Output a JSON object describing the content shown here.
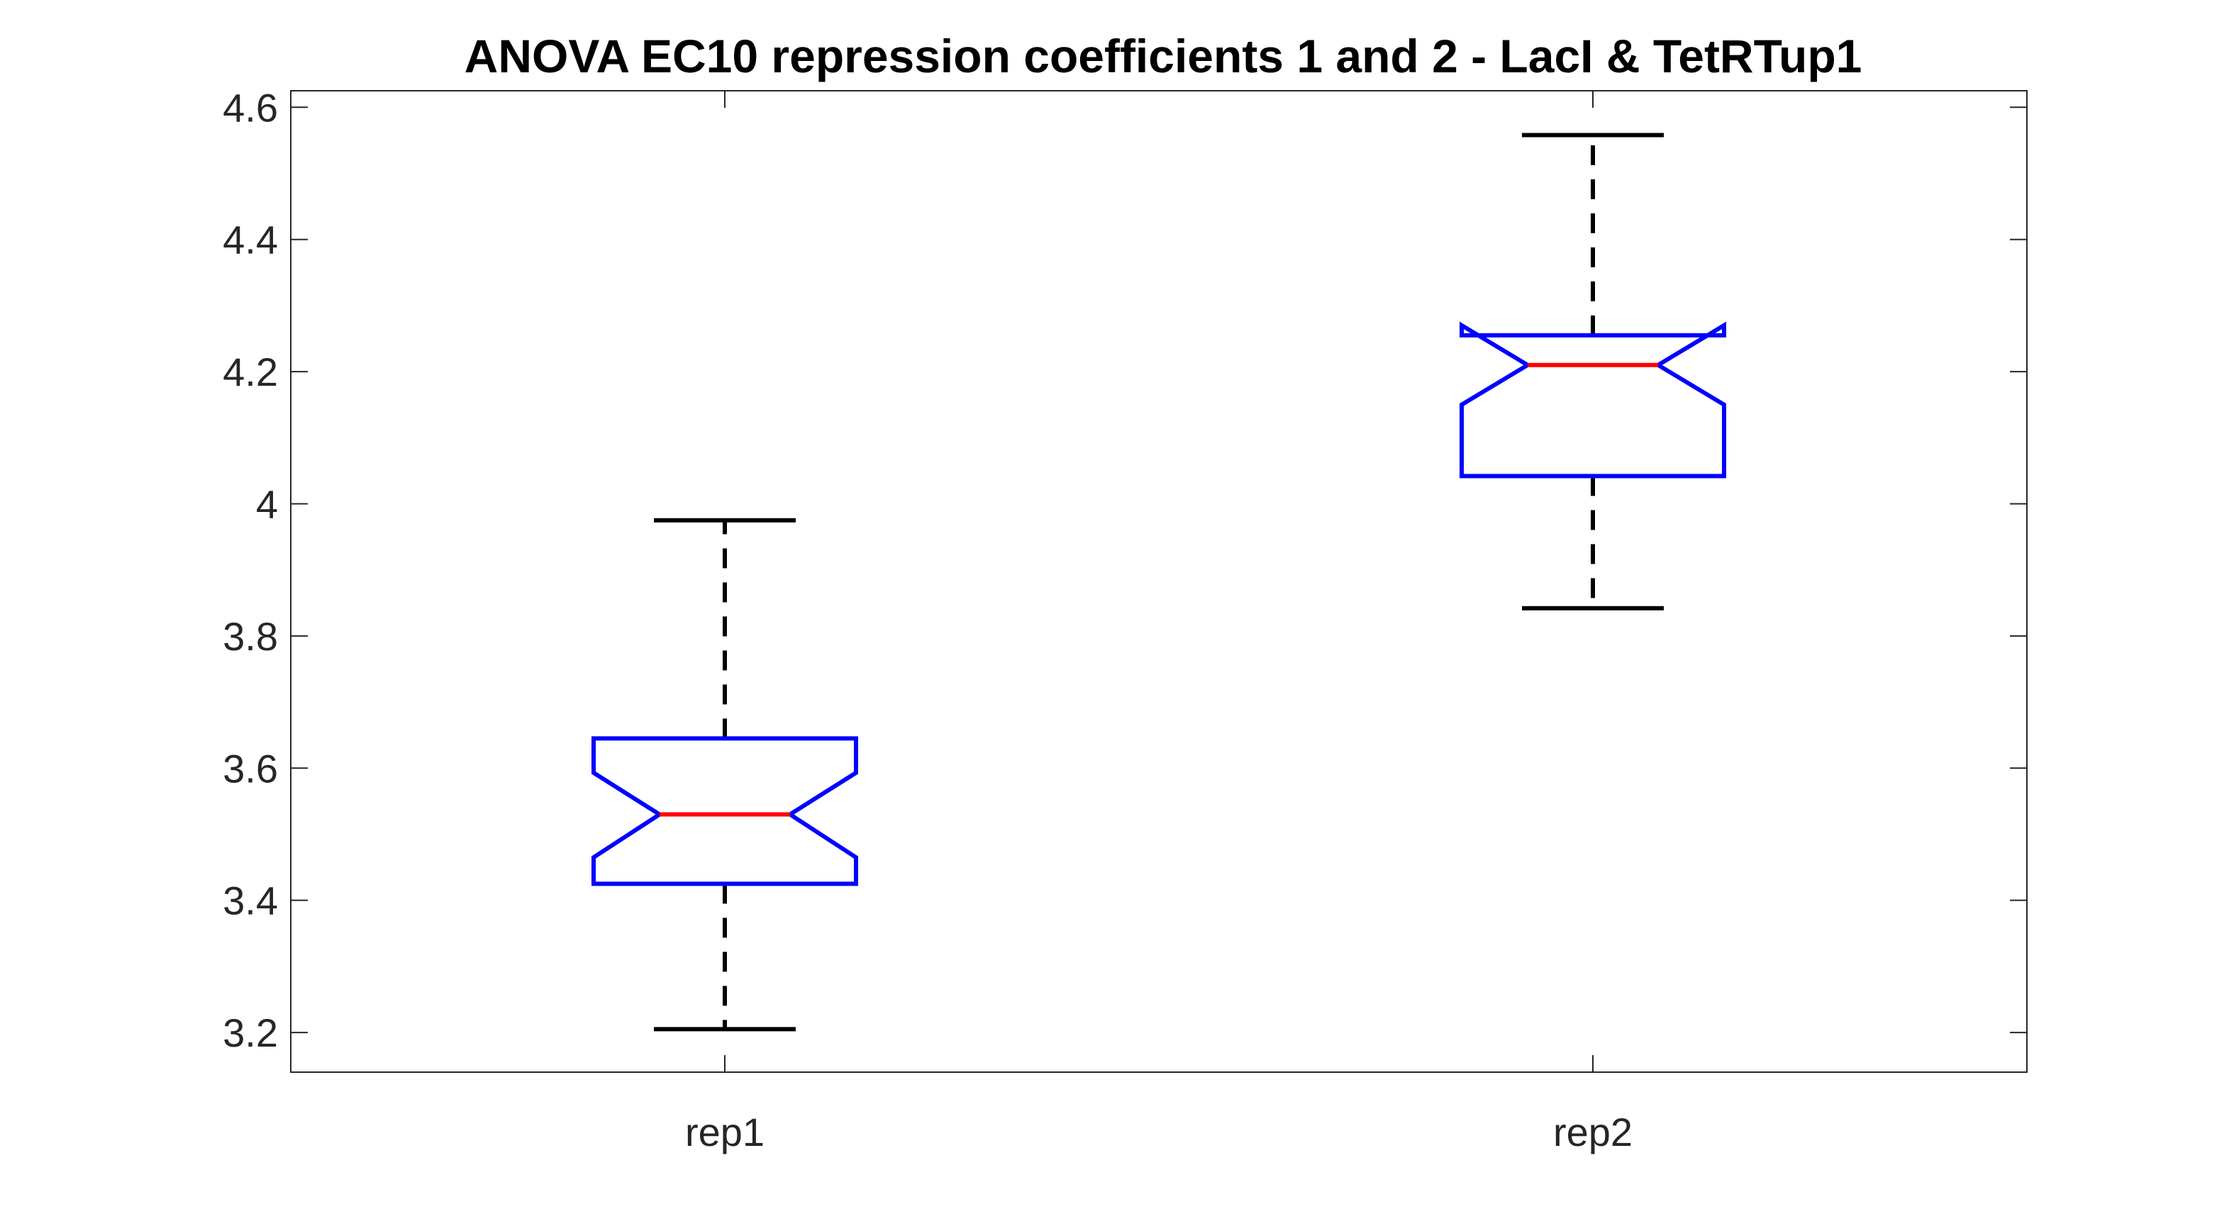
{
  "chart_data": {
    "type": "boxplot",
    "title": "ANOVA EC10 repression coefficients 1 and 2 - LacI & TetRTup1",
    "xlabel": "",
    "ylabel": "",
    "ylim": [
      3.14,
      4.625
    ],
    "yticks": [
      3.2,
      3.4,
      3.6,
      3.8,
      4,
      4.2,
      4.4,
      4.6
    ],
    "yticklabels": [
      "3.2",
      "3.4",
      "3.6",
      "3.8",
      "4",
      "4.2",
      "4.4",
      "4.6"
    ],
    "categories": [
      "rep1",
      "rep2"
    ],
    "notched": true,
    "box_color": "#0000FF",
    "median_color": "#FF0000",
    "whisker_color": "#000000",
    "boxes": [
      {
        "label": "rep1",
        "whisker_low": 3.205,
        "q1": 3.425,
        "notch_low": 3.465,
        "median": 3.53,
        "notch_high": 3.593,
        "q3": 3.645,
        "whisker_high": 3.975
      },
      {
        "label": "rep2",
        "whisker_low": 3.842,
        "q1": 4.042,
        "notch_low": 4.15,
        "median": 4.21,
        "notch_high": 4.27,
        "q3": 4.255,
        "whisker_high": 4.558
      }
    ]
  }
}
